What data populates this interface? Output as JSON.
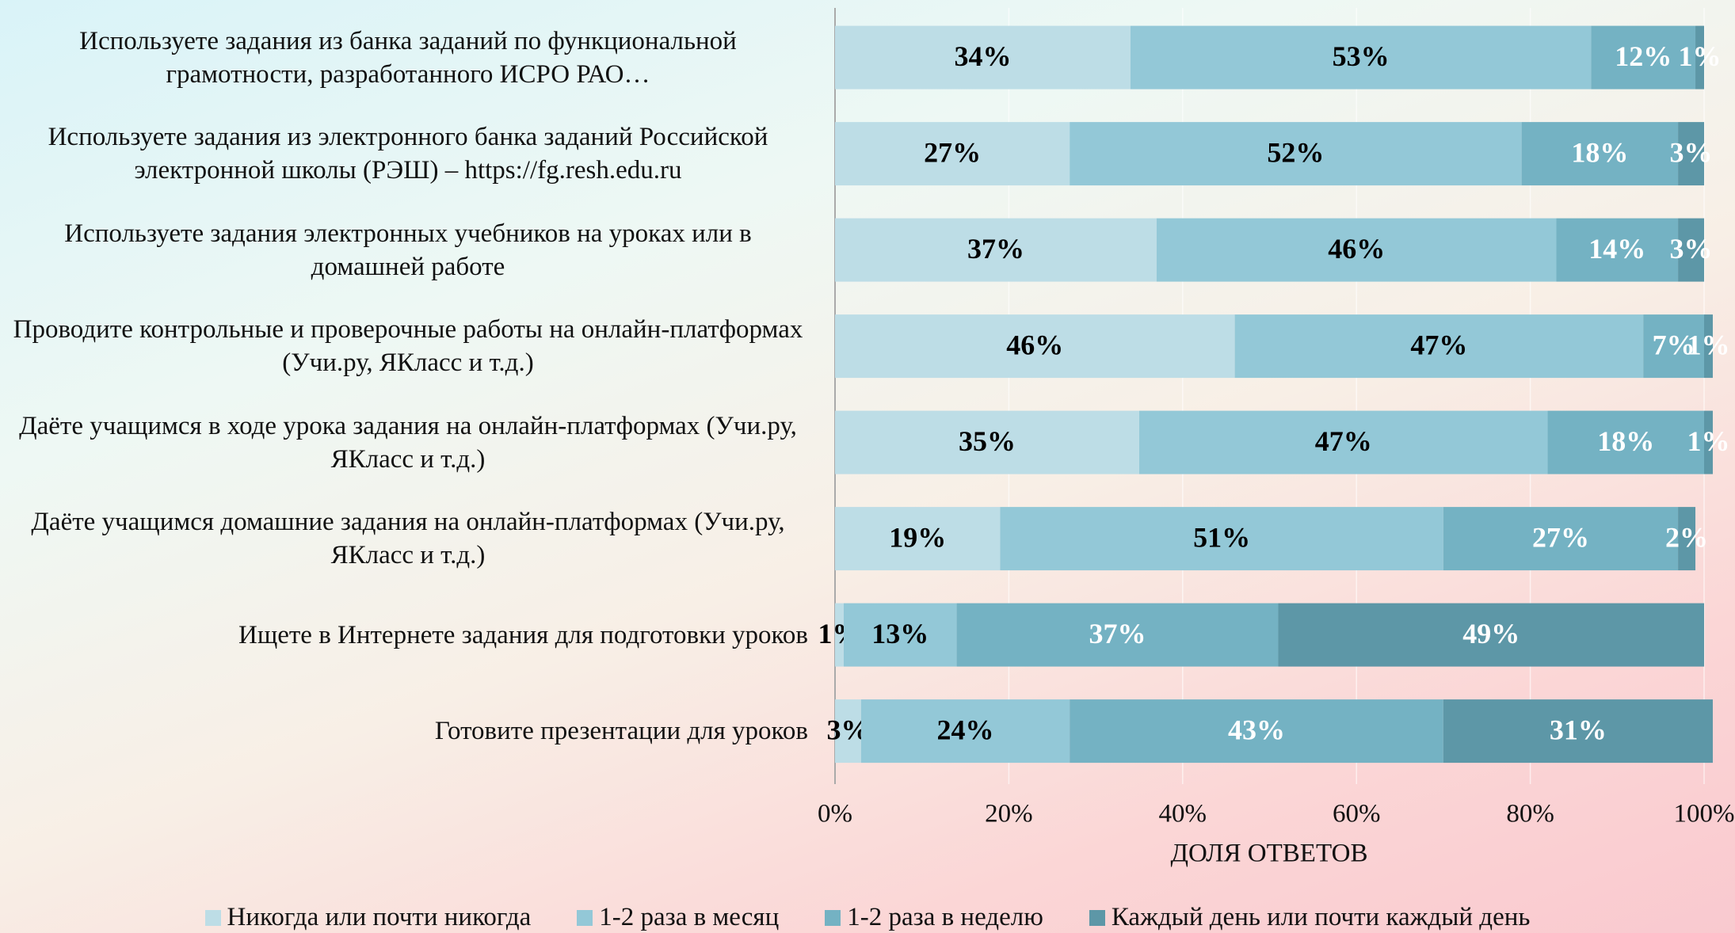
{
  "chart_data": {
    "type": "stacked-bar-horizontal",
    "categories": [
      "Используете задания из банка заданий по функциональной грамотности, разработанного ИСРО РАО…",
      "Используете задания из электронного банка заданий Российской электронной школы (РЭШ) – https://fg.resh.edu.ru",
      "Используете задания электронных учебников на уроках или в домашней работе",
      "Проводите контрольные и проверочные работы на онлайн-платформах (Учи.ру, ЯКласс и т.д.)",
      "Даёте учащимся в ходе урока задания на онлайн-платформах (Учи.ру, ЯКласс и т.д.)",
      "Даёте учащимся домашние задания на онлайн-платформах (Учи.ру, ЯКласс и т.д.)",
      "Ищете в Интернете задания для подготовки уроков",
      "Готовите презентации для уроков"
    ],
    "series": [
      {
        "name": "Никогда или почти никогда",
        "color": "#bddde6",
        "label_color": "#000000",
        "values": [
          34,
          27,
          37,
          46,
          35,
          19,
          1,
          3
        ],
        "value_labels": [
          "34%",
          "27%",
          "37%",
          "46%",
          "35%",
          "19%",
          "1%",
          "3%"
        ]
      },
      {
        "name": "1-2 раза в месяц",
        "color": "#93c8d7",
        "label_color": "#000000",
        "values": [
          53,
          52,
          46,
          47,
          47,
          51,
          13,
          24
        ],
        "value_labels": [
          "53%",
          "52%",
          "46%",
          "47%",
          "47%",
          "51%",
          "13%",
          "24%"
        ]
      },
      {
        "name": "1-2 раза в неделю",
        "color": "#74b2c3",
        "label_color": "#ffffff",
        "values": [
          12,
          18,
          14,
          7,
          18,
          27,
          37,
          43
        ],
        "value_labels": [
          "12%",
          "18%",
          "14%",
          "7%",
          "18%",
          "27%",
          "37%",
          "43%"
        ]
      },
      {
        "name": "Каждый день или почти каждый день",
        "color": "#5d97a7",
        "label_color": "#ffffff",
        "values": [
          1,
          3,
          3,
          1,
          1,
          2,
          49,
          31
        ],
        "value_labels": [
          "1%",
          "3%",
          "3%",
          "1%",
          "1%",
          "2%",
          "49%",
          "31%"
        ]
      }
    ],
    "xlabel": "ДОЛЯ ОТВЕТОВ",
    "xlim": [
      0,
      100
    ],
    "xticks": [
      {
        "value": 0,
        "label": "0%"
      },
      {
        "value": 20,
        "label": "20%"
      },
      {
        "value": 40,
        "label": "40%"
      },
      {
        "value": 60,
        "label": "60%"
      },
      {
        "value": 80,
        "label": "80%"
      },
      {
        "value": 100,
        "label": "100%"
      }
    ],
    "grid": true,
    "legend": "bottom"
  }
}
